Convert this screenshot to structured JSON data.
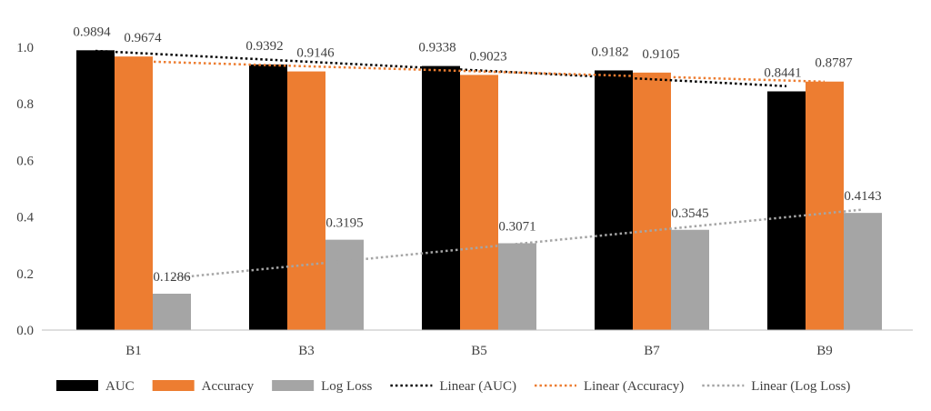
{
  "chart_data": {
    "type": "bar",
    "title": "",
    "xlabel": "",
    "ylabel": "",
    "ylim": [
      0,
      1.0
    ],
    "yticks": [
      "0.0",
      "0.2",
      "0.4",
      "0.6",
      "0.8",
      "1.0"
    ],
    "grid": false,
    "legend_position": "bottom",
    "categories": [
      "B1",
      "B3",
      "B5",
      "B7",
      "B9"
    ],
    "series": [
      {
        "name": "AUC",
        "color": "#000000",
        "values": [
          0.9894,
          0.9392,
          0.9338,
          0.9182,
          0.8441
        ],
        "labels": [
          "0.9894",
          "0.9392",
          "0.9338",
          "0.9182",
          "0.8441"
        ]
      },
      {
        "name": "Accuracy",
        "color": "#ed7d31",
        "values": [
          0.9674,
          0.9146,
          0.9023,
          0.9105,
          0.8787
        ],
        "labels": [
          "0.9674",
          "0.9146",
          "0.9023",
          "0.9105",
          "0.8787"
        ]
      },
      {
        "name": "Log Loss",
        "color": "#a5a5a5",
        "values": [
          0.1286,
          0.3195,
          0.3071,
          0.3545,
          0.4143
        ],
        "labels": [
          "0.1286",
          "0.3195",
          "0.3071",
          "0.3545",
          "0.4143"
        ]
      }
    ],
    "trendlines": [
      {
        "name": "Linear (AUC)",
        "series": "AUC",
        "color": "#000000",
        "style": "dotted"
      },
      {
        "name": "Linear (Accuracy)",
        "series": "Accuracy",
        "color": "#ed7d31",
        "style": "dotted"
      },
      {
        "name": "Linear (Log Loss)",
        "series": "Log Loss",
        "color": "#a5a5a5",
        "style": "dotted"
      }
    ]
  }
}
